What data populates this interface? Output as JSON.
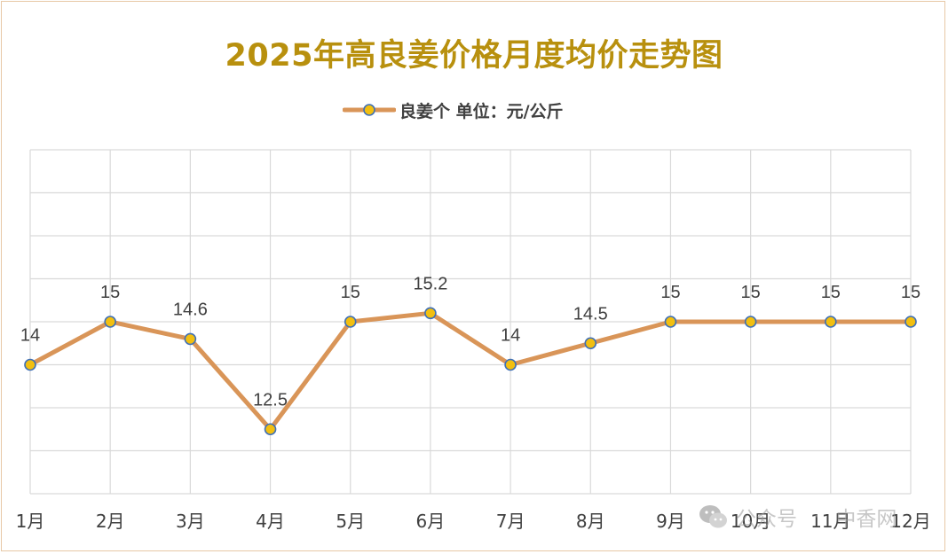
{
  "chart_data": {
    "type": "line",
    "title": "2025年高良姜价格月度均价走势图",
    "categories": [
      "1月",
      "2月",
      "3月",
      "4月",
      "5月",
      "6月",
      "7月",
      "8月",
      "9月",
      "10月",
      "11月",
      "12月"
    ],
    "series": [
      {
        "name": "良姜个 单位：元/公斤",
        "values": [
          14,
          15,
          14.6,
          12.5,
          15,
          15.2,
          14,
          14.5,
          15,
          15,
          15,
          15
        ]
      }
    ],
    "ylim": [
      11,
      19
    ],
    "y_gridlines": 8,
    "grid": true,
    "legend": "top-center",
    "line_color": "#d99558",
    "marker_fill": "#f2bf10",
    "marker_edge": "#3f6fb5",
    "title_color": "#b8900e",
    "data_labels": true
  },
  "watermark": {
    "icon": "wechat-icon",
    "left_text": "公众号",
    "separator": "·",
    "right_text": "中香网"
  }
}
